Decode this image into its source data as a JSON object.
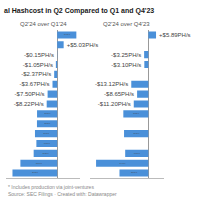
{
  "chart_data": [
    {
      "type": "bar",
      "orientation": "horizontal",
      "title": "al Hashcost in Q2 Compared to Q1 and Q4'23",
      "subtitle": "Q2'24 over Q1'24",
      "annotations": [
        "* Includes production via joint-ventures",
        "Source: SEC Filings · Created with: Datawrapper"
      ],
      "categories": [
        null,
        null,
        null,
        null,
        null,
        null,
        null,
        null,
        null,
        null,
        null,
        null,
        null,
        null,
        null
      ],
      "values": [
        14.95,
        5.03,
        -0.15,
        -1.05,
        -2.37,
        -3.67,
        -7.5,
        -8.22,
        -15.75,
        -15.82,
        -17.37,
        -16.27,
        -18.39,
        -28.76,
        -34.95
      ],
      "value_labels": [
        "+$14.95PH/s",
        "+$5.03PH/s",
        "-$0.15PH/s",
        "-$1.05PH/s",
        "-$2.37PH/s",
        "-$3.67PH/s",
        "-$7.50PH/s",
        "-$8.22PH/s",
        "-$15.75PH/s",
        "-$15.82PH/s",
        "-$17.37PH/s",
        "-$16.27PH/s",
        "-$18.39PH/s",
        "-$28.76PH/s",
        "-$34.95PH/s"
      ],
      "color": "#4a90d9",
      "xlim": [
        -40,
        18
      ],
      "xticks": [],
      "tick_labels": false,
      "data_labels": true,
      "grid": false
    },
    {
      "type": "bar",
      "orientation": "horizontal",
      "subtitle": "Q2'24 over Q4'23",
      "categories": [
        null,
        null,
        null,
        null,
        null,
        null,
        null,
        null,
        null,
        null,
        null,
        null,
        null,
        null,
        null
      ],
      "values": [
        5.89,
        0,
        -3.25,
        -3.1,
        0,
        -13.12,
        -8.65,
        -11.2,
        -19.22,
        0,
        -18.67,
        0,
        -17.8,
        -40.14,
        -22.17
      ],
      "value_labels": [
        "+$5.89PH/s",
        null,
        "-$3.25PH/s",
        "-$3.10PH/s",
        null,
        "-$13.12PH/s",
        "-$8.65PH/s",
        "-$11.20PH/s",
        "-$19.22PH/s",
        null,
        "-$18.67PH/s",
        null,
        "-$17.80PH/s",
        "-$40.14PH/s",
        "-$22.17PH/s"
      ],
      "color": "#4a90d9",
      "xlim": [
        -45,
        12
      ],
      "xticks": [],
      "tick_labels": false,
      "data_labels": true,
      "grid": false
    }
  ]
}
